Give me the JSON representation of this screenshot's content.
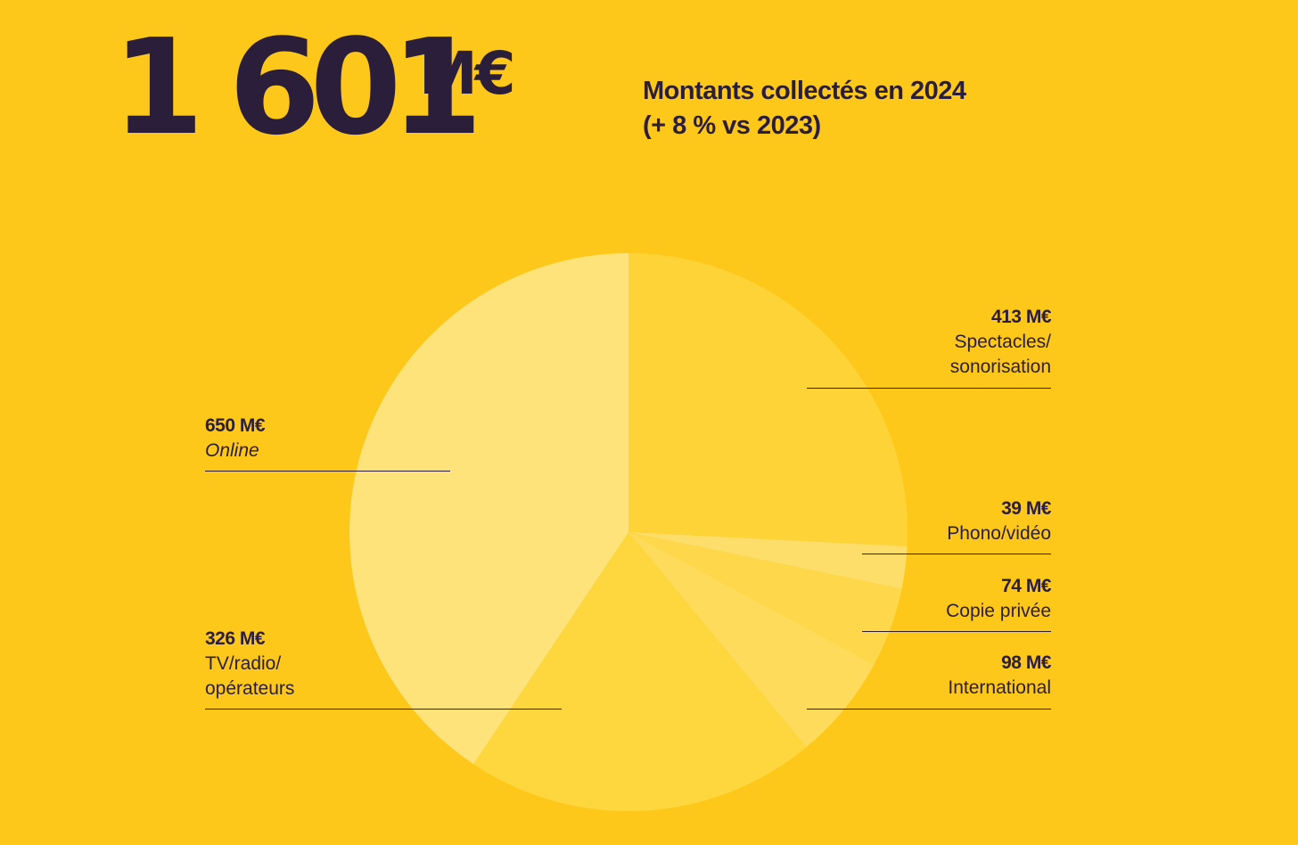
{
  "header": {
    "total_number": "1 601",
    "total_unit": "M€",
    "caption_line1": "Montants collectés en 2024",
    "caption_line2": "(+ 8 % vs 2023)"
  },
  "chart_data": {
    "type": "pie",
    "title": "Montants collectés en 2024",
    "unit": "M€",
    "slices": [
      {
        "label": "Spectacles/ sonorisation",
        "label_lines": [
          "Spectacles/",
          "sonorisation"
        ],
        "value": 413,
        "value_text": "413 M€",
        "color": "#fdd338"
      },
      {
        "label": "Phono/vidéo",
        "label_lines": [
          "Phono/vidéo"
        ],
        "value": 39,
        "value_text": "39 M€",
        "color": "#fede6a"
      },
      {
        "label": "Copie privée",
        "label_lines": [
          "Copie privée"
        ],
        "value": 74,
        "value_text": "74 M€",
        "color": "#fed84a"
      },
      {
        "label": "International",
        "label_lines": [
          "International"
        ],
        "value": 98,
        "value_text": "98 M€",
        "color": "#fedb5a"
      },
      {
        "label": "TV/radio/ opérateurs",
        "label_lines": [
          "TV/radio/",
          "opérateurs"
        ],
        "value": 326,
        "value_text": "326 M€",
        "color": "#fed73f"
      },
      {
        "label": "Online",
        "label_lines": [
          "Online"
        ],
        "value": 650,
        "value_text": "650 M€",
        "color": "#fee27a"
      }
    ]
  }
}
